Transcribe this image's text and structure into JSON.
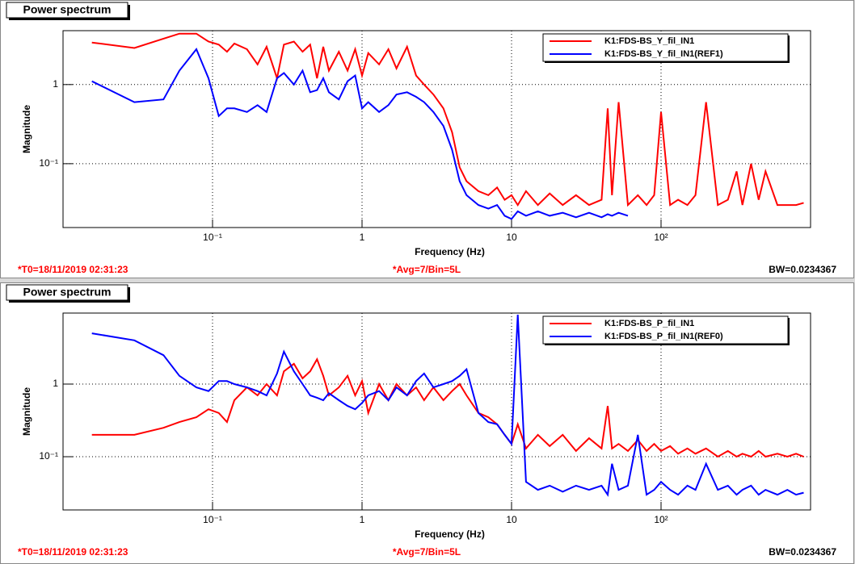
{
  "chart_data": [
    {
      "type": "line",
      "title": "Power spectrum",
      "x_label": "Frequency (Hz)",
      "y_label": "Magnitude",
      "xscale": "log",
      "yscale": "log",
      "grid": true,
      "legend": "top right",
      "xlim": [
        0.01,
        1000
      ],
      "ylim": [
        0.0156,
        4.8
      ],
      "xticks": [
        {
          "value": 0.1,
          "label": "10⁻¹"
        },
        1,
        10,
        {
          "value": 100,
          "label": "10²"
        }
      ],
      "yticks": [
        {
          "value": 0.1,
          "label": "10⁻¹"
        },
        1
      ],
      "notes": [
        "*T0=18/11/2019 02:31:23",
        "*Avg=7/Bin=5L",
        "BW=0.0234367"
      ],
      "x": [
        0.0156,
        0.03,
        0.047,
        0.06,
        0.078,
        0.094,
        0.11,
        0.125,
        0.14,
        0.17,
        0.2,
        0.23,
        0.27,
        0.3,
        0.35,
        0.4,
        0.45,
        0.5,
        0.55,
        0.6,
        0.7,
        0.8,
        0.9,
        1.0,
        1.1,
        1.3,
        1.5,
        1.7,
        2.0,
        2.3,
        2.6,
        3.0,
        3.5,
        4.0,
        4.5,
        5.0,
        6.0,
        7.0,
        8.0,
        9.0,
        10,
        11,
        12.5,
        15,
        18,
        22,
        27,
        33,
        40,
        44,
        47,
        52,
        60,
        70,
        80,
        90,
        100,
        115,
        130,
        150,
        170,
        200,
        240,
        280,
        320,
        350,
        400,
        450,
        500,
        600,
        700,
        800,
        900
      ],
      "series": [
        {
          "name": "K1:FDS-BS_Y_fil_IN1",
          "color": "#ff0000",
          "values": [
            3.4,
            2.9,
            3.8,
            4.4,
            4.4,
            3.5,
            3.2,
            2.6,
            3.3,
            2.8,
            1.8,
            3.0,
            1.2,
            3.2,
            3.5,
            2.6,
            3.2,
            1.2,
            3.0,
            1.5,
            2.6,
            1.5,
            2.8,
            1.3,
            2.5,
            1.8,
            2.8,
            1.6,
            3.0,
            1.3,
            1.0,
            0.75,
            0.5,
            0.25,
            0.09,
            0.06,
            0.045,
            0.04,
            0.05,
            0.035,
            0.04,
            0.03,
            0.045,
            0.03,
            0.042,
            0.03,
            0.04,
            0.03,
            0.035,
            0.5,
            0.04,
            0.6,
            0.03,
            0.04,
            0.03,
            0.04,
            0.45,
            0.03,
            0.035,
            0.03,
            0.04,
            0.6,
            0.03,
            0.035,
            0.08,
            0.03,
            0.1,
            0.035,
            0.08,
            0.03,
            0.03,
            0.03,
            0.032
          ]
        },
        {
          "name": "K1:FDS-BS_Y_fil_IN1(REF1)",
          "color": "#0000ff",
          "values": [
            1.1,
            0.6,
            0.65,
            1.5,
            2.8,
            1.2,
            0.4,
            0.5,
            0.5,
            0.45,
            0.55,
            0.45,
            1.2,
            1.4,
            1.0,
            1.5,
            0.8,
            0.85,
            1.2,
            0.8,
            0.65,
            1.1,
            1.3,
            0.5,
            0.6,
            0.45,
            0.55,
            0.75,
            0.8,
            0.7,
            0.6,
            0.45,
            0.3,
            0.15,
            0.06,
            0.04,
            0.03,
            0.027,
            0.03,
            0.022,
            0.02,
            0.025,
            0.022,
            0.025,
            0.022,
            0.024,
            0.021,
            0.024,
            0.021,
            0.023,
            0.022,
            0.024,
            0.022,
            null,
            null,
            null,
            null,
            null,
            null,
            null,
            null,
            null,
            null,
            null,
            null,
            null,
            null,
            null,
            null,
            null,
            null,
            null,
            null
          ]
        }
      ]
    },
    {
      "type": "line",
      "title": "Power spectrum",
      "x_label": "Frequency (Hz)",
      "y_label": "Magnitude",
      "xscale": "log",
      "yscale": "log",
      "grid": true,
      "legend": "top right",
      "xlim": [
        0.01,
        1000
      ],
      "ylim": [
        0.0185,
        9.5
      ],
      "xticks": [
        {
          "value": 0.1,
          "label": "10⁻¹"
        },
        1,
        10,
        {
          "value": 100,
          "label": "10²"
        }
      ],
      "yticks": [
        {
          "value": 0.1,
          "label": "10⁻¹"
        },
        1
      ],
      "notes": [
        "*T0=18/11/2019 02:31:23",
        "*Avg=7/Bin=5L",
        "BW=0.0234367"
      ],
      "x": [
        0.0156,
        0.03,
        0.047,
        0.06,
        0.078,
        0.094,
        0.11,
        0.125,
        0.14,
        0.17,
        0.2,
        0.23,
        0.27,
        0.3,
        0.35,
        0.4,
        0.45,
        0.5,
        0.55,
        0.6,
        0.7,
        0.8,
        0.9,
        1.0,
        1.1,
        1.3,
        1.5,
        1.7,
        2.0,
        2.3,
        2.6,
        3.0,
        3.5,
        4.0,
        4.5,
        5.0,
        6.0,
        7.0,
        8.0,
        9.0,
        10,
        11,
        12.5,
        15,
        18,
        22,
        27,
        33,
        40,
        44,
        47,
        52,
        60,
        70,
        80,
        90,
        100,
        115,
        130,
        150,
        170,
        200,
        240,
        280,
        320,
        350,
        400,
        450,
        500,
        600,
        700,
        800,
        900
      ],
      "series": [
        {
          "name": "K1:FDS-BS_P_fil_IN1",
          "color": "#ff0000",
          "values": [
            0.2,
            0.2,
            0.25,
            0.3,
            0.35,
            0.45,
            0.4,
            0.3,
            0.6,
            0.9,
            0.7,
            1.0,
            0.7,
            1.5,
            1.9,
            1.2,
            1.5,
            2.2,
            1.3,
            0.7,
            0.9,
            1.3,
            0.7,
            1.1,
            0.4,
            1.0,
            0.6,
            1.0,
            0.7,
            0.9,
            0.6,
            0.9,
            0.6,
            0.8,
            1.0,
            0.7,
            0.4,
            0.35,
            0.28,
            0.2,
            0.15,
            0.28,
            0.13,
            0.2,
            0.14,
            0.2,
            0.12,
            0.18,
            0.13,
            0.5,
            0.13,
            0.15,
            0.12,
            0.17,
            0.12,
            0.15,
            0.12,
            0.14,
            0.11,
            0.13,
            0.11,
            0.13,
            0.1,
            0.12,
            0.1,
            0.11,
            0.1,
            0.12,
            0.1,
            0.11,
            0.1,
            0.11,
            0.1
          ]
        },
        {
          "name": "K1:FDS-BS_P_fil_IN1(REF0)",
          "color": "#0000ff",
          "values": [
            5,
            4,
            2.5,
            1.3,
            0.9,
            0.8,
            1.1,
            1.1,
            1.0,
            0.9,
            0.8,
            0.7,
            1.4,
            2.8,
            1.5,
            1.0,
            0.7,
            0.65,
            0.6,
            0.75,
            0.6,
            0.5,
            0.45,
            0.55,
            0.7,
            0.8,
            0.6,
            0.9,
            0.7,
            1.1,
            1.4,
            0.9,
            1.0,
            1.1,
            1.3,
            1.6,
            0.4,
            0.3,
            0.28,
            0.2,
            0.15,
            9.0,
            0.045,
            0.035,
            0.04,
            0.033,
            0.04,
            0.035,
            0.04,
            0.03,
            0.08,
            0.035,
            0.04,
            0.2,
            0.03,
            0.035,
            0.045,
            0.035,
            0.03,
            0.04,
            0.035,
            0.08,
            0.035,
            0.04,
            0.03,
            0.035,
            0.04,
            0.03,
            0.035,
            0.03,
            0.035,
            0.03,
            0.032
          ]
        }
      ]
    }
  ]
}
